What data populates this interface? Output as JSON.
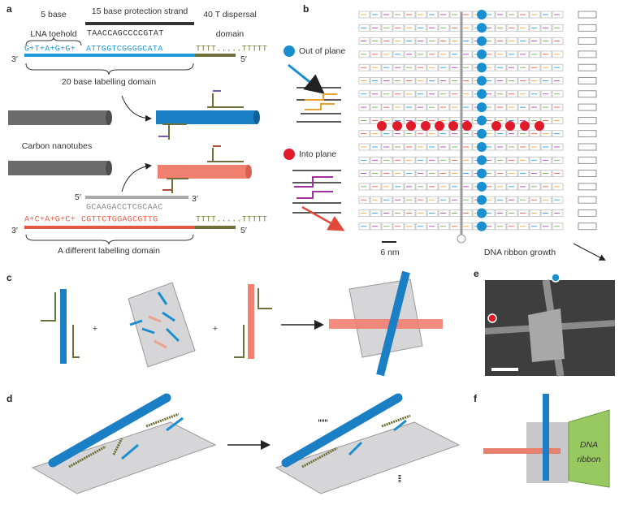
{
  "panel_labels": [
    "a",
    "b",
    "c",
    "d",
    "e",
    "f"
  ],
  "panel_a": {
    "toehold_label": [
      "5 base",
      "LNA toehold"
    ],
    "protection_label": "15 base protection strand",
    "dispersal_label": [
      "40 T dispersal",
      "domain"
    ],
    "protection_seq": "TAACCAGCCCCGTAT",
    "strand1": {
      "end3": "3′",
      "lna": "G+T+A+G+G+",
      "label_seq": "ATTGGTCGGGGCATA",
      "poly_t": "TTTT.....TTTTT",
      "end5": "5′"
    },
    "domain1_label": "20 base labelling domain",
    "nanotubes_label": "Carbon nanotubes",
    "protection2": {
      "end5": "5′",
      "seq": "GCAAGACCTCGCAAC",
      "end3": "3′"
    },
    "strand2": {
      "end3": "3′",
      "lna": "A+C+A+G+C+",
      "label_seq": "CGTTCTGGAGCGTTG",
      "poly_t": "TTTT.....TTTTT",
      "end5": "5′"
    },
    "domain2_label": "A different labelling domain"
  },
  "panel_b": {
    "out_of_plane": "Out of plane",
    "into_plane": "Into plane",
    "scale": "6 nm",
    "growth": "DNA ribbon growth"
  },
  "panel_c": {
    "plus": [
      "+",
      "+"
    ]
  },
  "panel_f": {
    "ribbon_label": [
      "DNA",
      "ribbon"
    ]
  }
}
